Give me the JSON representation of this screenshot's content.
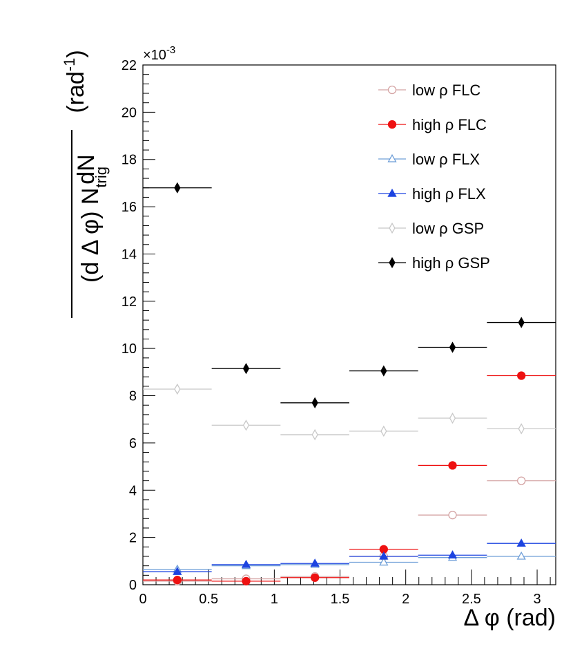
{
  "chart_data": {
    "type": "scatter",
    "title": "",
    "xlabel": "Δ φ (rad)",
    "ylabel_numerator": "dN",
    "ylabel_denominator": "(d Δ φ) N",
    "ylabel_subscript": "trig",
    "ylabel_unit": "(rad",
    "ylabel_unit_exp": "-1",
    "ylabel_unit_close": ")",
    "exponent_label_base": "×10",
    "exponent_label_power": "-3",
    "xlim": [
      0,
      3.1416
    ],
    "ylim": [
      0,
      22
    ],
    "x_ticks": [
      0,
      0.5,
      1,
      1.5,
      2,
      2.5,
      3
    ],
    "x_tick_labels": [
      "0",
      "0.5",
      "1",
      "1.5",
      "2",
      "2.5",
      "3"
    ],
    "y_ticks": [
      0,
      2,
      4,
      6,
      8,
      10,
      12,
      14,
      16,
      18,
      20,
      22
    ],
    "y_tick_labels": [
      "0",
      "2",
      "4",
      "6",
      "8",
      "10",
      "12",
      "14",
      "16",
      "18",
      "20",
      "22"
    ],
    "bin_edges": [
      0,
      0.5236,
      1.0472,
      1.5708,
      2.0944,
      2.618,
      3.1416
    ],
    "x": [
      0.2618,
      0.7854,
      1.309,
      1.8326,
      2.3562,
      2.8798
    ],
    "legend_position": "top-right",
    "series": [
      {
        "name": "low ρ FLC",
        "color": "#d4a3a3",
        "marker": "circle-open",
        "values": [
          0.15,
          0.25,
          0.35,
          1.2,
          2.95,
          4.4
        ]
      },
      {
        "name": "high ρ FLC",
        "color": "#ee1111",
        "marker": "circle-filled",
        "values": [
          0.2,
          0.15,
          0.3,
          1.5,
          5.05,
          8.85
        ]
      },
      {
        "name": "low ρ FLX",
        "color": "#6f9fd8",
        "marker": "triangle-open",
        "values": [
          0.65,
          0.8,
          0.85,
          0.95,
          1.15,
          1.2
        ]
      },
      {
        "name": "high ρ FLX",
        "color": "#1d44e0",
        "marker": "triangle-filled",
        "values": [
          0.55,
          0.85,
          0.9,
          1.2,
          1.25,
          1.75
        ]
      },
      {
        "name": "low ρ GSP",
        "color": "#c8c8c8",
        "marker": "diamond-open",
        "values": [
          8.28,
          6.75,
          6.35,
          6.5,
          7.05,
          6.6
        ]
      },
      {
        "name": "high ρ GSP",
        "color": "#000000",
        "marker": "diamond-filled",
        "values": [
          16.8,
          9.15,
          7.7,
          9.05,
          10.05,
          11.1
        ]
      }
    ]
  }
}
